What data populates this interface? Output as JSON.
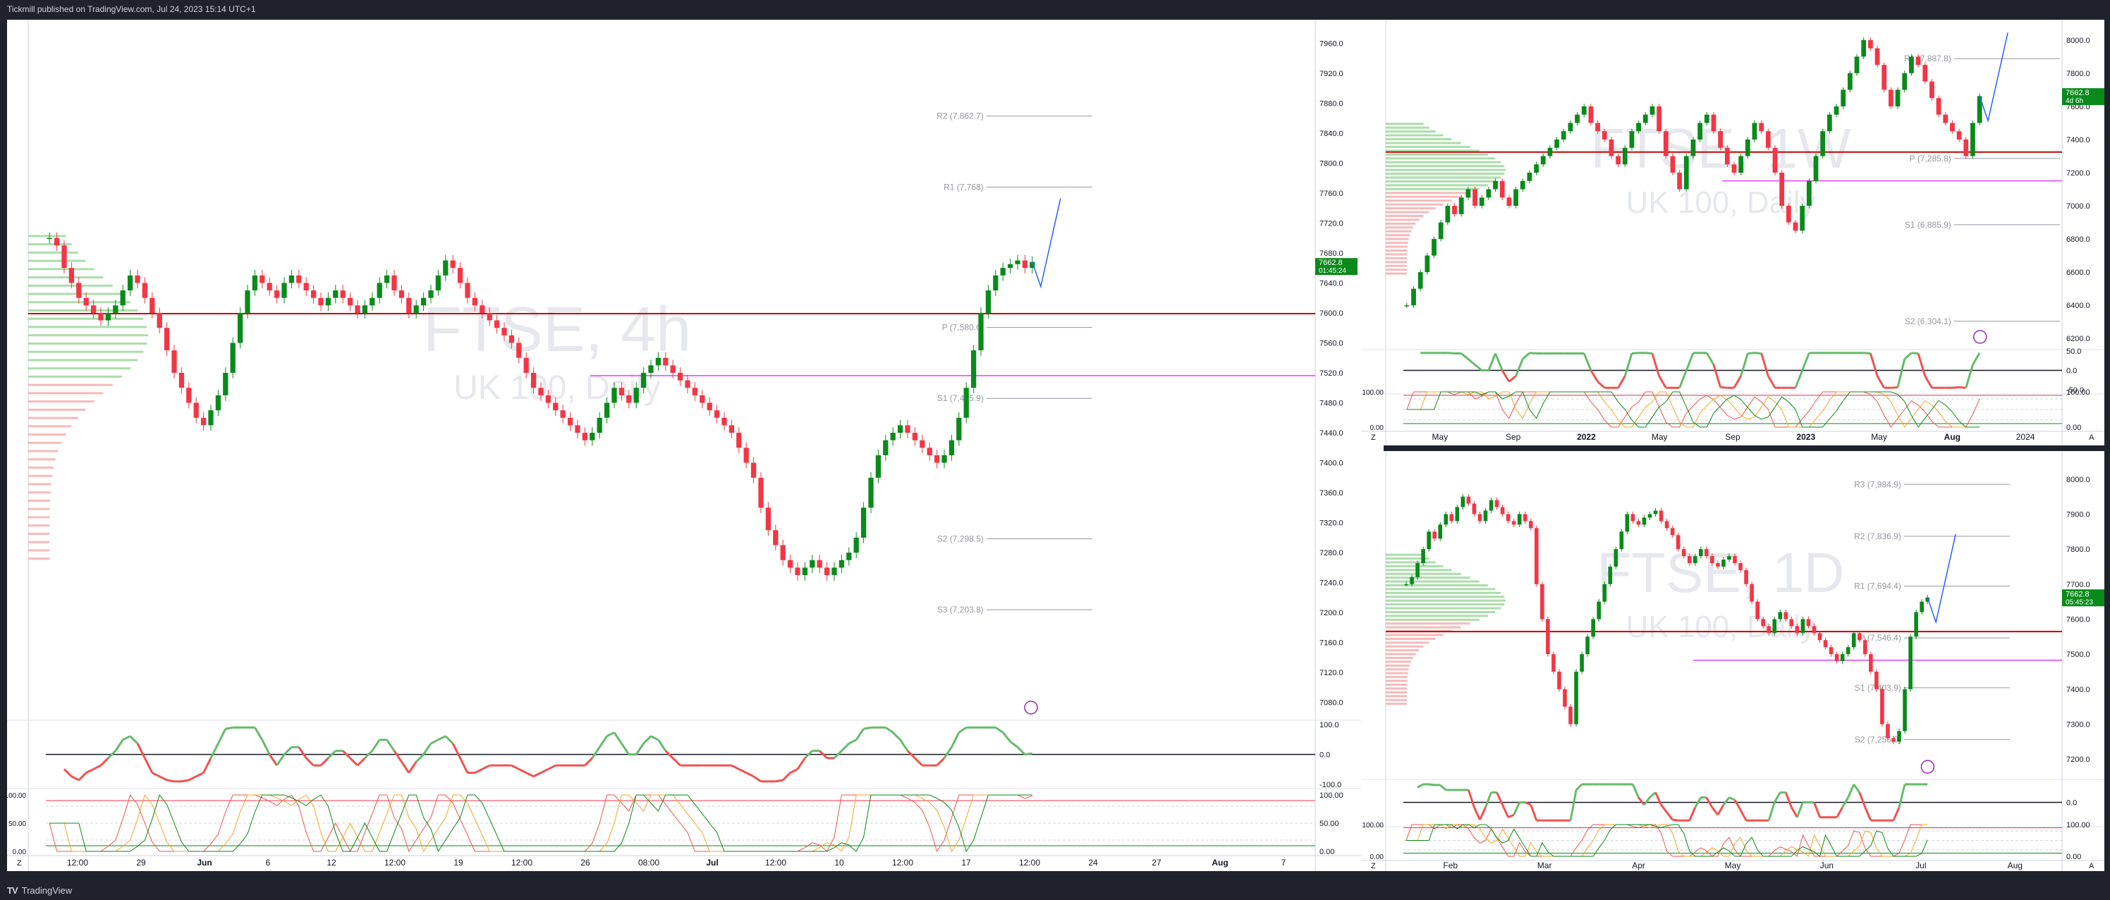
{
  "header": {
    "publisher_text": "Tickmill published on TradingView.com, Jul 24, 2023 15:14 UTC+1"
  },
  "footer": {
    "brand": "TradingView",
    "logo": "tradingview-logo-icon"
  },
  "colors": {
    "up": "#089981",
    "up_candle": "#0a8a1a",
    "down": "#f23645",
    "pivot_line": "#cc0000",
    "magenta": "#e040fb",
    "orange": "#f5a623",
    "blue_path": "#2962ff",
    "rsi_up": "#66bb6a",
    "rsi_down": "#ef5350"
  },
  "chart_data": [
    {
      "id": "4h",
      "type": "candlestick",
      "watermark_symbol": "FTSE, 4h",
      "watermark_sub": "UK 100, Daily",
      "price_ticks": [
        "7960.0",
        "7920.0",
        "7880.0",
        "7840.0",
        "7800.0",
        "7760.0",
        "7720.0",
        "7680.0",
        "7640.0",
        "7600.0",
        "7560.0",
        "7520.0",
        "7480.0",
        "7440.0",
        "7400.0",
        "7360.0",
        "7320.0",
        "7280.0",
        "7240.0",
        "7200.0",
        "7160.0",
        "7120.0",
        "7080.0"
      ],
      "ylim": [
        7060,
        7980
      ],
      "x_ticks": [
        "12:00",
        "29",
        "Jun",
        "6",
        "12",
        "12:00",
        "19",
        "12:00",
        "26",
        "08:00",
        "Jul",
        "12:00",
        "10",
        "12:00",
        "17",
        "12:00",
        "24",
        "27",
        "Aug",
        "7"
      ],
      "last_price": "7662.8",
      "last_timer": "01:45:24",
      "pivot_levels": [
        {
          "label": "R2 (7,862.7)",
          "value": 7862.7
        },
        {
          "label": "R1 (7,768)",
          "value": 7768
        },
        {
          "label": "P (7,580.6)",
          "value": 7580.6
        },
        {
          "label": "S1 (7,485.9)",
          "value": 7485.9
        },
        {
          "label": "S2 (7,298.5)",
          "value": 7298.5
        },
        {
          "label": "S3 (7,203.8)",
          "value": 7203.8
        }
      ],
      "rsi_ticks": [
        "100.0",
        "0.0",
        "-100.0"
      ],
      "stoch_ticks": [
        "100.00",
        "50.00",
        "0.00"
      ],
      "close_path": [
        7700,
        7690,
        7660,
        7640,
        7620,
        7610,
        7600,
        7590,
        7600,
        7610,
        7630,
        7650,
        7640,
        7620,
        7600,
        7580,
        7550,
        7520,
        7500,
        7480,
        7460,
        7450,
        7470,
        7490,
        7520,
        7560,
        7600,
        7630,
        7650,
        7640,
        7630,
        7620,
        7640,
        7650,
        7640,
        7630,
        7620,
        7610,
        7620,
        7630,
        7620,
        7610,
        7600,
        7610,
        7620,
        7640,
        7650,
        7630,
        7620,
        7600,
        7610,
        7620,
        7630,
        7650,
        7670,
        7660,
        7640,
        7620,
        7610,
        7600,
        7590,
        7580,
        7570,
        7560,
        7540,
        7520,
        7500,
        7490,
        7480,
        7470,
        7460,
        7450,
        7440,
        7430,
        7440,
        7460,
        7480,
        7500,
        7490,
        7480,
        7500,
        7520,
        7530,
        7540,
        7530,
        7520,
        7510,
        7500,
        7490,
        7480,
        7470,
        7460,
        7450,
        7440,
        7420,
        7400,
        7380,
        7340,
        7310,
        7290,
        7270,
        7260,
        7250,
        7260,
        7270,
        7260,
        7250,
        7260,
        7270,
        7280,
        7300,
        7340,
        7380,
        7410,
        7430,
        7440,
        7450,
        7440,
        7430,
        7420,
        7410,
        7400,
        7410,
        7430,
        7460,
        7500,
        7550,
        7600,
        7630,
        7650,
        7660,
        7665,
        7670,
        7660,
        7668
      ]
    },
    {
      "id": "1W",
      "type": "candlestick",
      "watermark_symbol": "FTSE, 1W",
      "watermark_sub": "UK 100, Daily",
      "price_ticks": [
        "8000.0",
        "7800.0",
        "7600.0",
        "7400.0",
        "7200.0",
        "7000.0",
        "6800.0",
        "6600.0",
        "6400.0",
        "6200.0"
      ],
      "ylim": [
        6150,
        8080
      ],
      "x_ticks": [
        "May",
        "Sep",
        "2022",
        "May",
        "Sep",
        "2023",
        "May",
        "Aug",
        "2024"
      ],
      "last_price": "7662.8",
      "last_timer": "4d 6h",
      "pivot_levels": [
        {
          "label": "R1 (7,887.8)",
          "value": 7887.8
        },
        {
          "label": "P (7,285.8)",
          "value": 7285.8
        },
        {
          "label": "S1 (6,885.9)",
          "value": 6885.9
        },
        {
          "label": "S2 (6,304.1)",
          "value": 6304.1
        }
      ],
      "rsi_ticks": [
        "50.0",
        "0.0",
        "-50.0"
      ],
      "stoch_ticks": [
        "100.00",
        "0.00"
      ],
      "close_path": [
        6400,
        6500,
        6600,
        6700,
        6800,
        6900,
        7000,
        6950,
        7050,
        7100,
        7000,
        7050,
        7100,
        7150,
        7050,
        7000,
        7100,
        7150,
        7200,
        7250,
        7300,
        7350,
        7400,
        7450,
        7500,
        7550,
        7600,
        7500,
        7450,
        7400,
        7300,
        7250,
        7350,
        7450,
        7500,
        7550,
        7600,
        7450,
        7300,
        7200,
        7100,
        7300,
        7400,
        7500,
        7550,
        7450,
        7350,
        7250,
        7200,
        7300,
        7400,
        7500,
        7450,
        7350,
        7200,
        7000,
        6900,
        6850,
        7000,
        7150,
        7300,
        7450,
        7550,
        7600,
        7700,
        7800,
        7900,
        8000,
        7950,
        7850,
        7700,
        7600,
        7700,
        7800,
        7900,
        7850,
        7750,
        7650,
        7550,
        7500,
        7450,
        7400,
        7300,
        7500,
        7662
      ]
    },
    {
      "id": "1D",
      "type": "candlestick",
      "watermark_symbol": "FTSE, 1D",
      "watermark_sub": "UK 100, Daily",
      "price_ticks": [
        "8000.0",
        "7900.0",
        "7800.0",
        "7700.0",
        "7600.0",
        "7500.0",
        "7400.0",
        "7300.0",
        "7200.0"
      ],
      "ylim": [
        7150,
        8060
      ],
      "x_ticks": [
        "Feb",
        "Mar",
        "Apr",
        "May",
        "Jun",
        "Jul",
        "Aug"
      ],
      "last_price": "7662.8",
      "last_timer": "05:45:23",
      "pivot_levels": [
        {
          "label": "R3 (7,984.9)",
          "value": 7984.9
        },
        {
          "label": "R2 (7,836.9)",
          "value": 7836.9
        },
        {
          "label": "R1 (7,694.4)",
          "value": 7694.4
        },
        {
          "label": "P (7,546.4)",
          "value": 7546.4
        },
        {
          "label": "S1 (7,403.9)",
          "value": 7403.9
        },
        {
          "label": "S2 (7,255.9)",
          "value": 7255.9
        }
      ],
      "rsi_ticks": [
        "0.0"
      ],
      "stoch_ticks": [
        "100.00",
        "0.00"
      ],
      "close_path": [
        7700,
        7720,
        7760,
        7800,
        7850,
        7830,
        7870,
        7900,
        7880,
        7920,
        7950,
        7930,
        7900,
        7880,
        7910,
        7940,
        7920,
        7900,
        7880,
        7870,
        7900,
        7880,
        7860,
        7700,
        7600,
        7500,
        7450,
        7400,
        7350,
        7300,
        7450,
        7500,
        7550,
        7600,
        7650,
        7700,
        7750,
        7800,
        7850,
        7900,
        7880,
        7870,
        7890,
        7900,
        7910,
        7880,
        7860,
        7840,
        7800,
        7780,
        7760,
        7780,
        7800,
        7780,
        7760,
        7750,
        7770,
        7780,
        7760,
        7740,
        7700,
        7650,
        7600,
        7580,
        7560,
        7600,
        7620,
        7600,
        7580,
        7560,
        7600,
        7580,
        7560,
        7540,
        7520,
        7500,
        7480,
        7500,
        7520,
        7560,
        7540,
        7500,
        7450,
        7400,
        7300,
        7260,
        7250,
        7280,
        7400,
        7550,
        7620,
        7650,
        7662
      ]
    }
  ],
  "axis_icons": {
    "z_label": "Z",
    "a_label": "A"
  },
  "alert_icon": "lightning-icon"
}
